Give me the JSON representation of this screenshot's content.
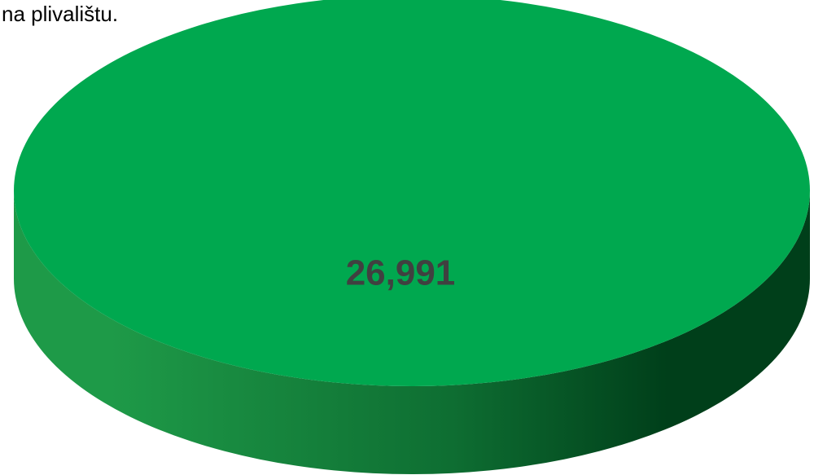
{
  "caption": "na plivalištu.",
  "colors": {
    "slice_top": "#00A84F",
    "slice_side_light": "#1E9A48",
    "slice_side_dark": "#003F1A",
    "label": "#404040"
  },
  "chart_data": {
    "type": "pie",
    "style": "3d",
    "labels": [
      ""
    ],
    "values": [
      26991
    ],
    "data_labels": [
      "26,991"
    ],
    "title": "",
    "legend": "none"
  }
}
